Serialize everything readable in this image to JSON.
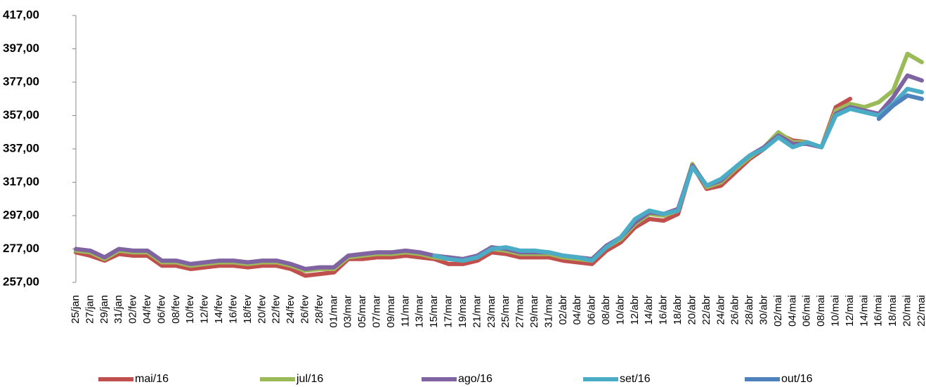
{
  "chart_data": {
    "type": "line",
    "categories": [
      "25/jan",
      "27/jan",
      "29/jan",
      "31/jan",
      "02/fev",
      "04/fev",
      "06/fev",
      "08/fev",
      "10/fev",
      "12/fev",
      "14/fev",
      "16/fev",
      "18/fev",
      "20/fev",
      "22/fev",
      "24/fev",
      "26/fev",
      "28/fev",
      "01/mar",
      "03/mar",
      "05/mar",
      "07/mar",
      "09/mar",
      "11/mar",
      "13/mar",
      "15/mar",
      "17/mar",
      "19/mar",
      "21/mar",
      "23/mar",
      "25/mar",
      "27/mar",
      "29/mar",
      "31/mar",
      "02/abr",
      "04/abr",
      "06/abr",
      "08/abr",
      "10/abr",
      "12/abr",
      "14/abr",
      "16/abr",
      "18/abr",
      "20/abr",
      "22/abr",
      "24/abr",
      "26/abr",
      "28/abr",
      "30/abr",
      "02/mai",
      "04/mai",
      "06/mai",
      "08/mai",
      "10/mai",
      "12/mai",
      "14/mai",
      "16/mai",
      "18/mai",
      "20/mai",
      "22/mai"
    ],
    "series": [
      {
        "name": "mai/16",
        "color": "#c0504d",
        "values": [
          275,
          273,
          270,
          274,
          273,
          273,
          267,
          267,
          265,
          266,
          267,
          267,
          266,
          267,
          267,
          265,
          261,
          262,
          263,
          271,
          271,
          272,
          272,
          273,
          272,
          271,
          268,
          268,
          270,
          275,
          274,
          272,
          272,
          272,
          270,
          269,
          268,
          276,
          281,
          290,
          295,
          294,
          298,
          327,
          313,
          315,
          323,
          331,
          337,
          346,
          342,
          341,
          338,
          362,
          367,
          null,
          null,
          null,
          null,
          null
        ]
      },
      {
        "name": "jul/16",
        "color": "#9bbb59",
        "values": [
          276,
          275,
          271,
          276,
          275,
          275,
          269,
          269,
          267,
          268,
          269,
          269,
          268,
          269,
          269,
          267,
          264,
          265,
          265,
          272,
          273,
          274,
          274,
          275,
          274,
          272,
          271,
          270,
          272,
          277,
          276,
          274,
          274,
          274,
          272,
          271,
          270,
          278,
          283,
          292,
          298,
          297,
          300,
          328,
          314,
          317,
          325,
          332,
          338,
          347,
          341,
          341,
          338,
          360,
          364,
          362,
          365,
          372,
          394,
          389
        ]
      },
      {
        "name": "ago/16",
        "color": "#8064a2",
        "values": [
          277,
          276,
          272,
          277,
          276,
          276,
          270,
          270,
          268,
          269,
          270,
          270,
          269,
          270,
          270,
          268,
          265,
          266,
          266,
          273,
          274,
          275,
          275,
          276,
          275,
          273,
          272,
          271,
          273,
          278,
          277,
          275,
          275,
          275,
          273,
          272,
          271,
          279,
          284,
          293,
          299,
          298,
          301,
          327,
          315,
          318,
          326,
          333,
          338,
          345,
          340,
          340,
          338,
          358,
          362,
          360,
          358,
          368,
          381,
          378
        ]
      },
      {
        "name": "set/16",
        "color": "#4bacc6",
        "values": [
          null,
          null,
          null,
          null,
          null,
          null,
          null,
          null,
          null,
          null,
          null,
          null,
          null,
          null,
          null,
          null,
          null,
          null,
          null,
          null,
          null,
          null,
          null,
          null,
          null,
          273,
          271,
          270,
          272,
          277,
          278,
          276,
          276,
          275,
          273,
          272,
          270,
          278,
          284,
          295,
          300,
          298,
          300,
          326,
          315,
          319,
          326,
          333,
          337,
          344,
          338,
          341,
          338,
          357,
          361,
          359,
          357,
          364,
          373,
          371
        ]
      },
      {
        "name": "out/16",
        "color": "#4f81bd",
        "values": [
          null,
          null,
          null,
          null,
          null,
          null,
          null,
          null,
          null,
          null,
          null,
          null,
          null,
          null,
          null,
          null,
          null,
          null,
          null,
          null,
          null,
          null,
          null,
          null,
          null,
          null,
          null,
          null,
          null,
          null,
          null,
          null,
          null,
          null,
          null,
          null,
          null,
          null,
          null,
          null,
          null,
          null,
          null,
          null,
          null,
          null,
          null,
          null,
          null,
          null,
          null,
          null,
          null,
          null,
          null,
          null,
          355,
          363,
          369,
          367
        ]
      }
    ],
    "ylim": [
      257,
      417
    ],
    "yticks": [
      {
        "value": 257,
        "label": "257,00"
      },
      {
        "value": 277,
        "label": "277,00"
      },
      {
        "value": 297,
        "label": "297,00"
      },
      {
        "value": 317,
        "label": "317,00"
      },
      {
        "value": 337,
        "label": "337,00"
      },
      {
        "value": 357,
        "label": "357,00"
      },
      {
        "value": 377,
        "label": "377,00"
      },
      {
        "value": 397,
        "label": "397,00"
      },
      {
        "value": 417,
        "label": "417,00"
      }
    ],
    "legend": "bottom"
  }
}
